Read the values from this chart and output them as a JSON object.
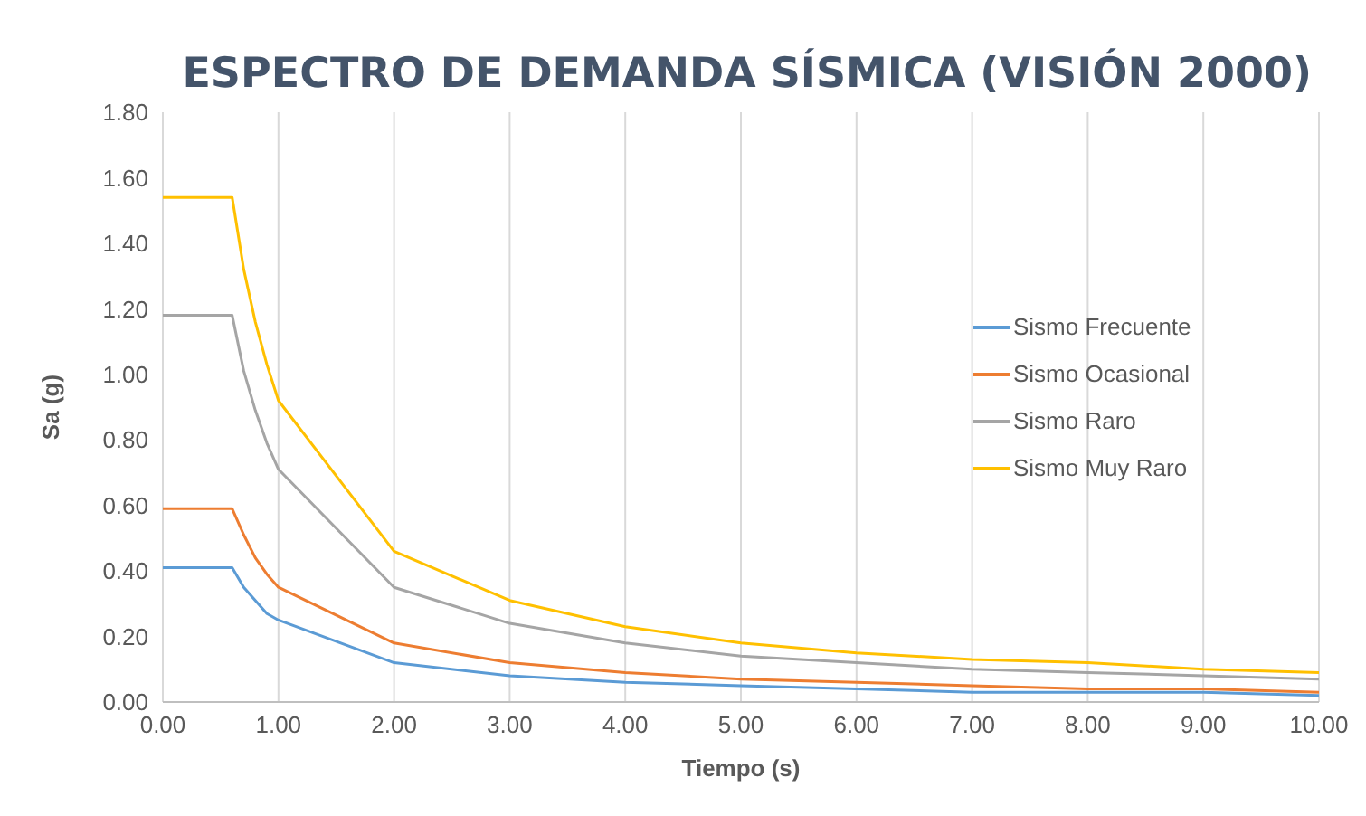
{
  "chart_data": {
    "type": "line",
    "title": "ESPECTRO DE DEMANDA SÍSMICA (VISIÓN 2000)",
    "xlabel": "Tiempo (s)",
    "ylabel": "Sa (g)",
    "x": [
      0,
      0.6,
      0.7,
      0.8,
      0.9,
      1,
      2,
      3,
      4,
      5,
      6,
      7,
      8,
      9,
      10
    ],
    "series": [
      {
        "name": "Sismo Frecuente",
        "color": "#5b9bd5",
        "values": [
          0.41,
          0.41,
          0.35,
          0.31,
          0.27,
          0.25,
          0.12,
          0.08,
          0.06,
          0.05,
          0.04,
          0.03,
          0.03,
          0.03,
          0.02
        ]
      },
      {
        "name": "Sismo Ocasional",
        "color": "#ed7d31",
        "values": [
          0.59,
          0.59,
          0.51,
          0.44,
          0.39,
          0.35,
          0.18,
          0.12,
          0.09,
          0.07,
          0.06,
          0.05,
          0.04,
          0.04,
          0.03
        ]
      },
      {
        "name": "Sismo Raro",
        "color": "#a5a5a5",
        "values": [
          1.18,
          1.18,
          1.01,
          0.89,
          0.79,
          0.71,
          0.35,
          0.24,
          0.18,
          0.14,
          0.12,
          0.1,
          0.09,
          0.08,
          0.07
        ]
      },
      {
        "name": "Sismo Muy Raro",
        "color": "#ffc000",
        "values": [
          1.54,
          1.54,
          1.32,
          1.16,
          1.03,
          0.92,
          0.46,
          0.31,
          0.23,
          0.18,
          0.15,
          0.13,
          0.12,
          0.1,
          0.09
        ]
      }
    ],
    "xlim": [
      0,
      10
    ],
    "xticks": [
      {
        "value": 0,
        "label": "0.00"
      },
      {
        "value": 1,
        "label": "1.00"
      },
      {
        "value": 2,
        "label": "2.00"
      },
      {
        "value": 3,
        "label": "3.00"
      },
      {
        "value": 4,
        "label": "4.00"
      },
      {
        "value": 5,
        "label": "5.00"
      },
      {
        "value": 6,
        "label": "6.00"
      },
      {
        "value": 7,
        "label": "7.00"
      },
      {
        "value": 8,
        "label": "8.00"
      },
      {
        "value": 9,
        "label": "9.00"
      },
      {
        "value": 10,
        "label": "10.00"
      }
    ],
    "ylim": [
      0,
      1.8
    ],
    "yticks": [
      {
        "value": 0,
        "label": "0.00"
      },
      {
        "value": 0.2,
        "label": "0.20"
      },
      {
        "value": 0.4,
        "label": "0.40"
      },
      {
        "value": 0.6,
        "label": "0.60"
      },
      {
        "value": 0.8,
        "label": "0.80"
      },
      {
        "value": 1,
        "label": "1.00"
      },
      {
        "value": 1.2,
        "label": "1.20"
      },
      {
        "value": 1.4,
        "label": "1.40"
      },
      {
        "value": 1.6,
        "label": "1.60"
      },
      {
        "value": 1.8,
        "label": "1.80"
      }
    ],
    "grid": "x",
    "legend": "right",
    "marker": "none",
    "line_style": "solid"
  }
}
